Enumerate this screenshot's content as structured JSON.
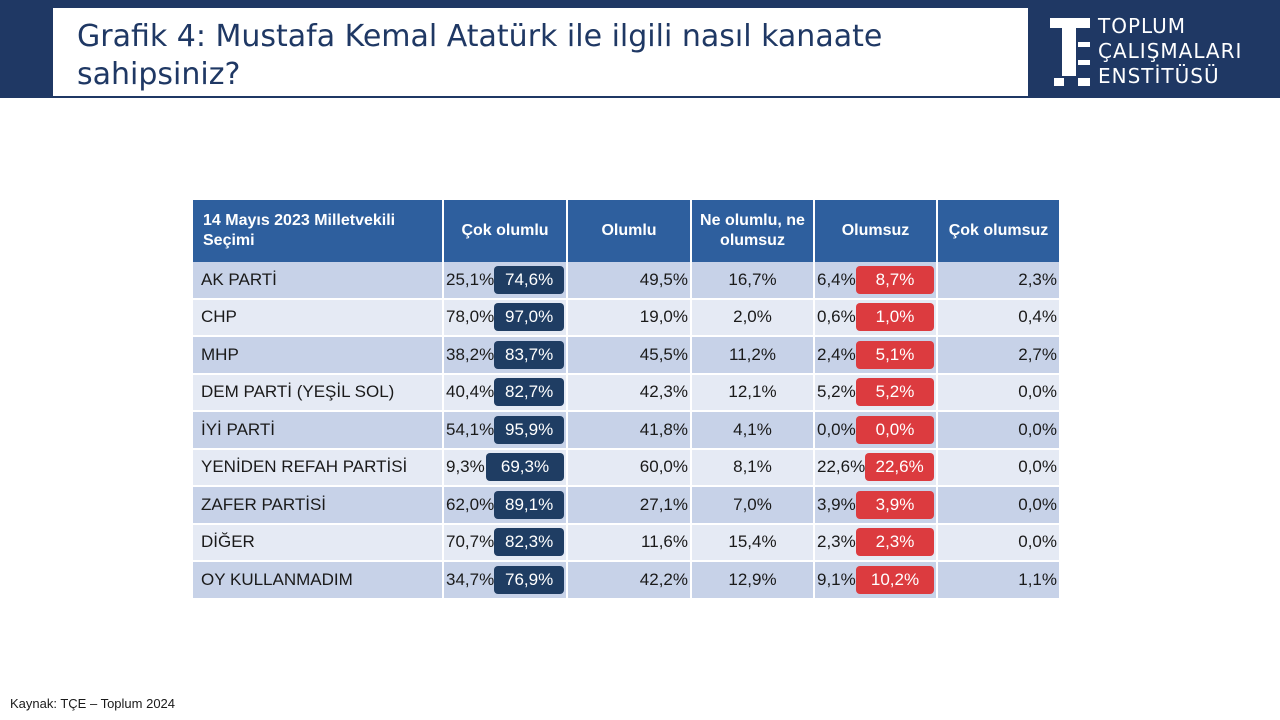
{
  "slide": {
    "title": "Grafik 4: Mustafa Kemal Atatürk ile ilgili nasıl kanaate sahipsiniz?",
    "logo_lines": [
      "TOPLUM",
      "ÇALIŞMALARI",
      "ENSTİTÜSÜ"
    ],
    "source": "Kaynak: TÇE – Toplum 2024"
  },
  "colors": {
    "header_band": "#1f3864",
    "table_header": "#2e5f9e",
    "positive_pill": "#1f3d63",
    "negative_pill": "#dc3b3f",
    "row_dark": "#c7d2e8",
    "row_light": "#e5eaf4"
  },
  "table": {
    "headers": [
      "14 Mayıs 2023 Milletvekili Seçimi",
      "Çok olumlu",
      "Olumlu",
      "Ne olumlu, ne olumsuz",
      "Olumsuz",
      "Çok olumsuz"
    ],
    "rows": [
      {
        "party": "AK PARTİ",
        "cok_olumlu": "25,1%",
        "olumlu_toplam": "74,6%",
        "olumlu": "49,5%",
        "ne_olumlu": "16,7%",
        "olumsuz": "6,4%",
        "olumsuz_toplam": "8,7%",
        "cok_olumsuz": "2,3%"
      },
      {
        "party": "CHP",
        "cok_olumlu": "78,0%",
        "olumlu_toplam": "97,0%",
        "olumlu": "19,0%",
        "ne_olumlu": "2,0%",
        "olumsuz": "0,6%",
        "olumsuz_toplam": "1,0%",
        "cok_olumsuz": "0,4%"
      },
      {
        "party": "MHP",
        "cok_olumlu": "38,2%",
        "olumlu_toplam": "83,7%",
        "olumlu": "45,5%",
        "ne_olumlu": "11,2%",
        "olumsuz": "2,4%",
        "olumsuz_toplam": "5,1%",
        "cok_olumsuz": "2,7%"
      },
      {
        "party": "DEM PARTİ (YEŞİL SOL)",
        "cok_olumlu": "40,4%",
        "olumlu_toplam": "82,7%",
        "olumlu": "42,3%",
        "ne_olumlu": "12,1%",
        "olumsuz": "5,2%",
        "olumsuz_toplam": "5,2%",
        "cok_olumsuz": "0,0%"
      },
      {
        "party": "İYİ PARTİ",
        "cok_olumlu": "54,1%",
        "olumlu_toplam": "95,9%",
        "olumlu": "41,8%",
        "ne_olumlu": "4,1%",
        "olumsuz": "0,0%",
        "olumsuz_toplam": "0,0%",
        "cok_olumsuz": "0,0%"
      },
      {
        "party": "YENİDEN REFAH PARTİSİ",
        "cok_olumlu": "9,3%",
        "olumlu_toplam": "69,3%",
        "olumlu": "60,0%",
        "ne_olumlu": "8,1%",
        "olumsuz": "22,6%",
        "olumsuz_toplam": "22,6%",
        "cok_olumsuz": "0,0%"
      },
      {
        "party": "ZAFER PARTİSİ",
        "cok_olumlu": "62,0%",
        "olumlu_toplam": "89,1%",
        "olumlu": "27,1%",
        "ne_olumlu": "7,0%",
        "olumsuz": "3,9%",
        "olumsuz_toplam": "3,9%",
        "cok_olumsuz": "0,0%"
      },
      {
        "party": "DİĞER",
        "cok_olumlu": "70,7%",
        "olumlu_toplam": "82,3%",
        "olumlu": "11,6%",
        "ne_olumlu": "15,4%",
        "olumsuz": "2,3%",
        "olumsuz_toplam": "2,3%",
        "cok_olumsuz": "0,0%"
      },
      {
        "party": "OY KULLANMADIM",
        "cok_olumlu": "34,7%",
        "olumlu_toplam": "76,9%",
        "olumlu": "42,2%",
        "ne_olumlu": "12,9%",
        "olumsuz": "9,1%",
        "olumsuz_toplam": "10,2%",
        "cok_olumsuz": "1,1%"
      }
    ]
  }
}
